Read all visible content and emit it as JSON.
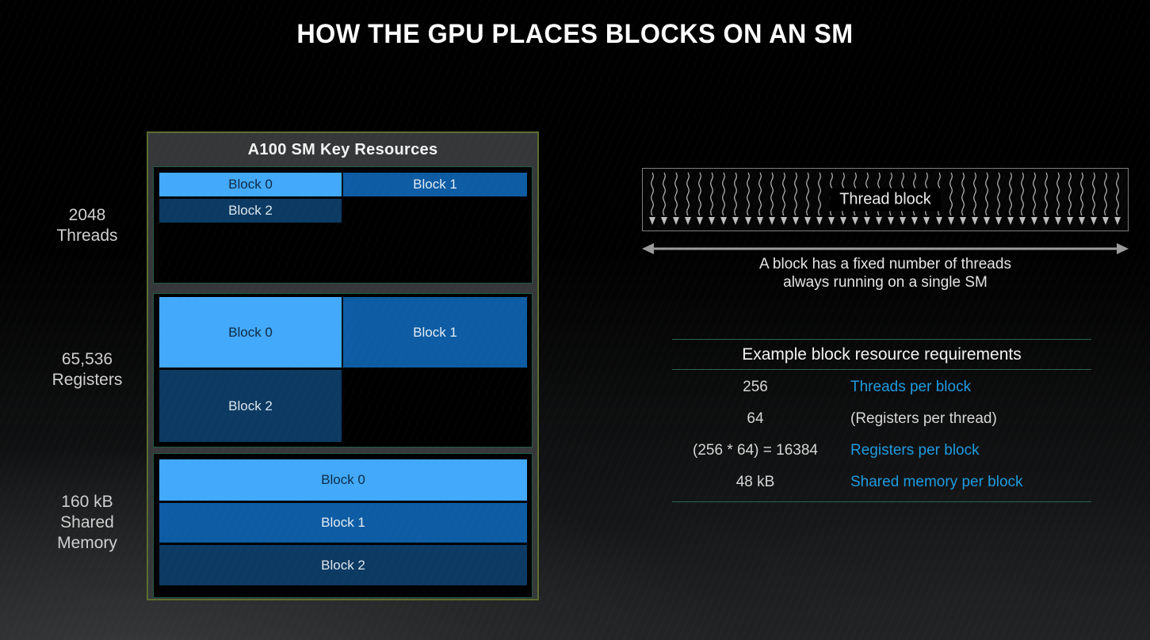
{
  "slide": {
    "title": "HOW THE GPU PLACES BLOCKS ON AN SM"
  },
  "colors": {
    "block_light": "#42a9fb",
    "block_medium": "#0d5ca4",
    "block_dark": "#0c3a62",
    "accent_text_blue": "#1e9bdf",
    "plain_text": "#d6d6d6",
    "table_line": "#2a6450",
    "panel_border_olive": "#5c6c31",
    "section_border_teal": "#235c46",
    "squiggle_gray": "#bdbdbd",
    "arrow_gray": "#9b9b9b"
  },
  "resource_labels": [
    {
      "lines": [
        "2048",
        "Threads"
      ]
    },
    {
      "lines": [
        "65,536",
        "Registers"
      ]
    },
    {
      "lines": [
        "160 kB",
        "Shared",
        "Memory"
      ]
    }
  ],
  "sm_panel": {
    "title": "A100 SM Key Resources",
    "sections": [
      {
        "name": "threads",
        "blocks": [
          {
            "label": "Block 0"
          },
          {
            "label": "Block 1"
          },
          {
            "label": "Block 2"
          }
        ]
      },
      {
        "name": "registers",
        "blocks": [
          {
            "label": "Block 0"
          },
          {
            "label": "Block 1"
          },
          {
            "label": "Block 2"
          }
        ]
      },
      {
        "name": "shared-memory",
        "blocks": [
          {
            "label": "Block 0"
          },
          {
            "label": "Block 1"
          },
          {
            "label": "Block 2"
          }
        ]
      }
    ]
  },
  "thread_block": {
    "label": "Thread block",
    "thread_count": 40,
    "caption_lines": [
      "A block has a fixed number of threads",
      "always running on a single SM"
    ]
  },
  "requirements_table": {
    "title": "Example block resource requirements",
    "rows": [
      {
        "value": "256",
        "label": "Threads per block",
        "highlight": true
      },
      {
        "value": "64",
        "label": "(Registers per thread)",
        "highlight": false
      },
      {
        "value": "(256 * 64) = 16384",
        "label": "Registers per block",
        "highlight": true
      },
      {
        "value": "48 kB",
        "label": "Shared memory per block",
        "highlight": true
      }
    ]
  }
}
